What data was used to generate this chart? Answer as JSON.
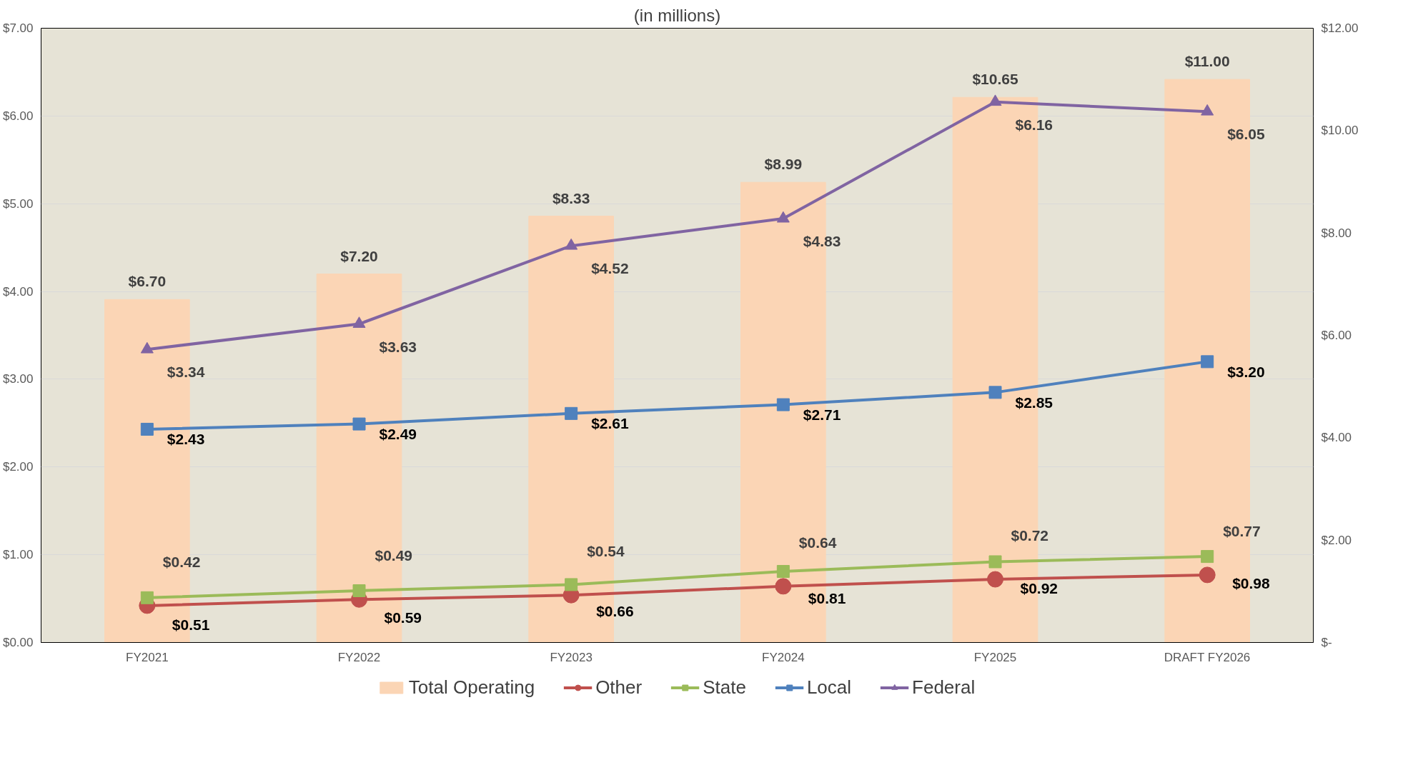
{
  "chart_data": {
    "type": "line",
    "title": "(in millions)",
    "categories": [
      "FY2021",
      "FY2022",
      "FY2023",
      "FY2024",
      "FY2025",
      "DRAFT FY2026"
    ],
    "series": [
      {
        "name": "Total Operating",
        "type": "bar",
        "axis": "y2",
        "color": "#fbd5b5",
        "values": [
          6.7,
          7.2,
          8.33,
          8.99,
          10.65,
          11.0
        ],
        "value_labels": [
          "$6.70",
          "$7.20",
          "$8.33",
          "$8.99",
          "$10.65",
          "$11.00"
        ]
      },
      {
        "name": "Other",
        "color": "#c0504d",
        "marker": "circle",
        "values": [
          0.42,
          0.49,
          0.54,
          0.64,
          0.72,
          0.77
        ],
        "value_labels": [
          "$0.42",
          "$0.49",
          "$0.54",
          "$0.64",
          "$0.72",
          "$0.77"
        ]
      },
      {
        "name": "State",
        "color": "#9bbb59",
        "marker": "square",
        "values": [
          0.51,
          0.59,
          0.66,
          0.81,
          0.92,
          0.98
        ],
        "value_labels": [
          "$0.51",
          "$0.59",
          "$0.66",
          "$0.81",
          "$0.92",
          "$0.98"
        ]
      },
      {
        "name": "Local",
        "color": "#4f81bd",
        "marker": "square",
        "values": [
          2.43,
          2.49,
          2.61,
          2.71,
          2.85,
          3.2
        ],
        "value_labels": [
          "$2.43",
          "$2.49",
          "$2.61",
          "$2.71",
          "$2.85",
          "$3.20"
        ]
      },
      {
        "name": "Federal",
        "color": "#8064a2",
        "marker": "triangle",
        "values": [
          3.34,
          3.63,
          4.52,
          4.83,
          6.16,
          6.05
        ],
        "value_labels": [
          "$3.34",
          "$3.63",
          "$4.52",
          "$4.83",
          "$6.16",
          "$6.05"
        ]
      }
    ],
    "ylim": [
      0,
      7
    ],
    "yticks": [
      {
        "value": 0,
        "label": "$0.00"
      },
      {
        "value": 1,
        "label": "$1.00"
      },
      {
        "value": 2,
        "label": "$2.00"
      },
      {
        "value": 3,
        "label": "$3.00"
      },
      {
        "value": 4,
        "label": "$4.00"
      },
      {
        "value": 5,
        "label": "$5.00"
      },
      {
        "value": 6,
        "label": "$6.00"
      },
      {
        "value": 7,
        "label": "$7.00"
      }
    ],
    "y2lim": [
      0,
      12
    ],
    "y2ticks": [
      {
        "value": 0,
        "label": "$-"
      },
      {
        "value": 2,
        "label": "$2.00"
      },
      {
        "value": 4,
        "label": "$4.00"
      },
      {
        "value": 6,
        "label": "$6.00"
      },
      {
        "value": 8,
        "label": "$8.00"
      },
      {
        "value": 10,
        "label": "$10.00"
      },
      {
        "value": 12,
        "label": "$12.00"
      }
    ],
    "grid": "y",
    "legend": "bottom"
  }
}
